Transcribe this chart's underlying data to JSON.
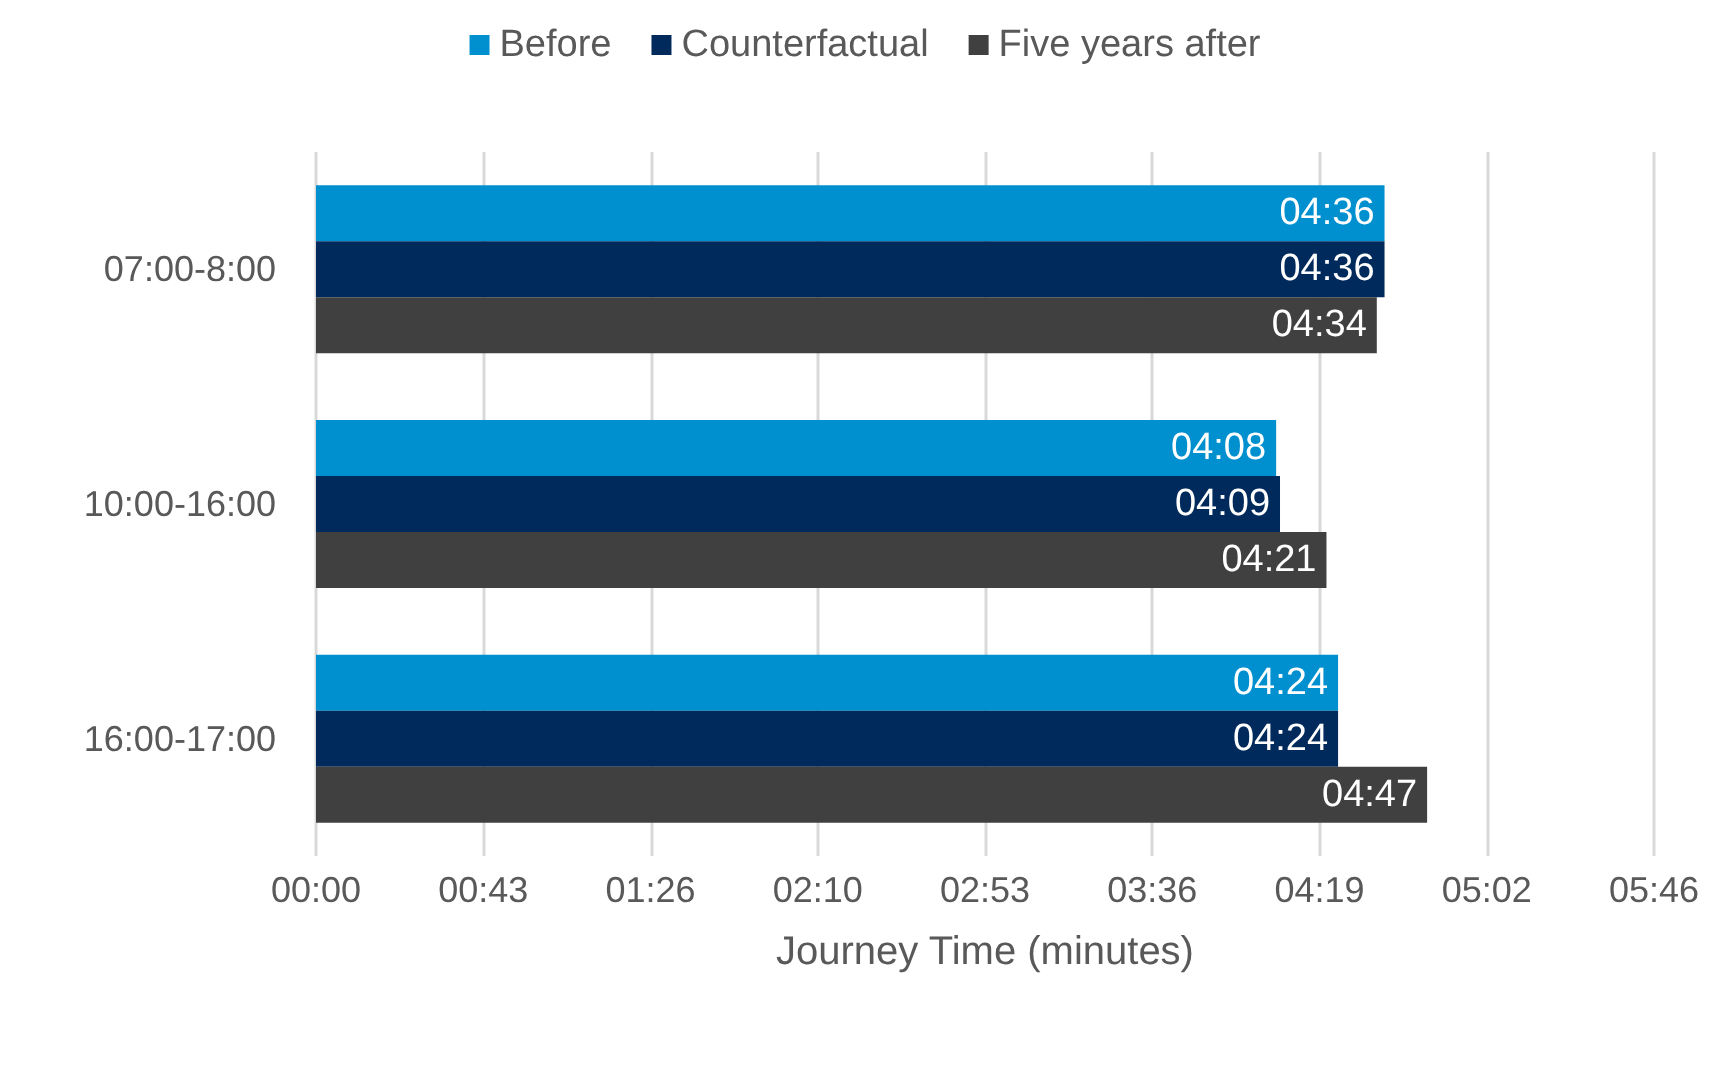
{
  "chart_data": {
    "type": "bar",
    "orientation": "horizontal",
    "xlabel": "Journey Time (minutes)",
    "categories": [
      "07:00-8:00",
      "10:00-16:00",
      "16:00-17:00"
    ],
    "series": [
      {
        "name": "Before",
        "color": "#0090d0",
        "values": [
          276,
          248,
          264
        ],
        "value_labels": [
          "04:36",
          "04:08",
          "04:24"
        ]
      },
      {
        "name": "Counterfactual",
        "color": "#002a5c",
        "values": [
          276,
          249,
          264
        ],
        "value_labels": [
          "04:36",
          "04:09",
          "04:24"
        ]
      },
      {
        "name": "Five years after",
        "color": "#404040",
        "values": [
          274,
          261,
          287
        ],
        "value_labels": [
          "04:34",
          "04:21",
          "04:47"
        ]
      }
    ],
    "xlim": [
      0,
      345.6
    ],
    "xticks": [
      {
        "value": 0,
        "label": "00:00"
      },
      {
        "value": 43.2,
        "label": "00:43"
      },
      {
        "value": 86.4,
        "label": "01:26"
      },
      {
        "value": 129.6,
        "label": "02:10"
      },
      {
        "value": 172.8,
        "label": "02:53"
      },
      {
        "value": 216,
        "label": "03:36"
      },
      {
        "value": 259.2,
        "label": "04:19"
      },
      {
        "value": 302.4,
        "label": "05:02"
      },
      {
        "value": 345.6,
        "label": "05:46"
      }
    ],
    "grid": "x",
    "legend": "top"
  }
}
